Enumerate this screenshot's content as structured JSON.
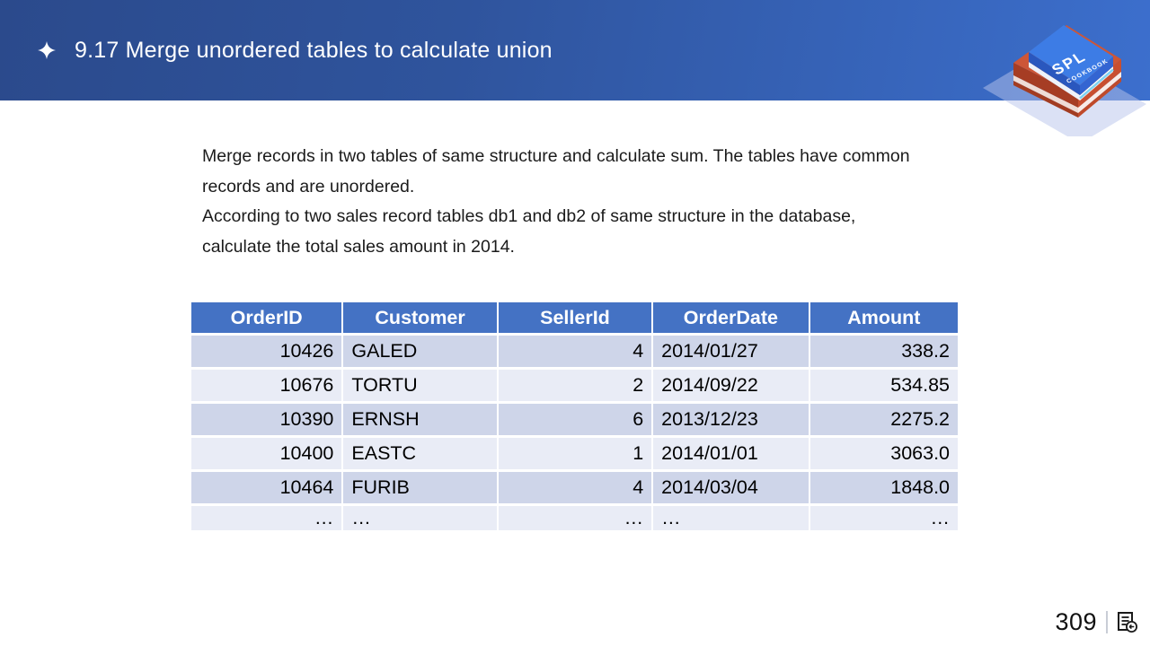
{
  "header": {
    "title": "9.17 Merge unordered tables to calculate union"
  },
  "logo": {
    "title": "SPL",
    "subtitle": "COOKBOOK"
  },
  "body": {
    "lines": [
      "Merge records in two tables of same structure and calculate sum. The tables have common",
      "records and are unordered.",
      "According to two sales record tables db1 and db2 of same structure in the database,",
      "calculate the total sales amount in 2014."
    ]
  },
  "table": {
    "columns": [
      {
        "label": "OrderID",
        "align": "right"
      },
      {
        "label": "Customer",
        "align": "left"
      },
      {
        "label": "SellerId",
        "align": "right"
      },
      {
        "label": "OrderDate",
        "align": "left"
      },
      {
        "label": "Amount",
        "align": "right"
      }
    ],
    "rows": [
      [
        "10426",
        "GALED",
        "4",
        "2014/01/27",
        "338.2"
      ],
      [
        "10676",
        "TORTU",
        "2",
        "2014/09/22",
        "534.85"
      ],
      [
        "10390",
        "ERNSH",
        "6",
        "2013/12/23",
        "2275.2"
      ],
      [
        "10400",
        "EASTC",
        "1",
        "2014/01/01",
        "3063.0"
      ],
      [
        "10464",
        "FURIB",
        "4",
        "2014/03/04",
        "1848.0"
      ],
      [
        "…",
        "…",
        "…",
        "…",
        "…"
      ]
    ]
  },
  "footer": {
    "page_number": "309"
  },
  "colors": {
    "header_gradient_start": "#2b4a8c",
    "header_gradient_end": "#3c6fcd",
    "table_header_bg": "#4472c4",
    "row_band_dark": "#ced5e9",
    "row_band_light": "#e9ecf6",
    "book_blue": "#3d7ce5",
    "book_red": "#c84f30",
    "title_text": "#ffffff",
    "body_text": "#1b1b1b"
  }
}
